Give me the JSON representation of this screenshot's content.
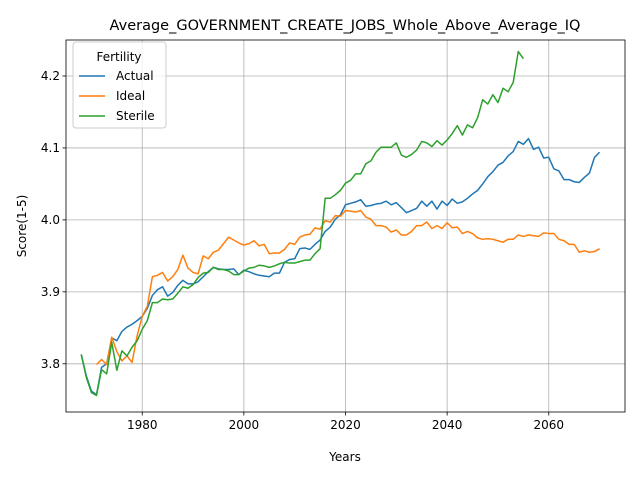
{
  "chart_data": {
    "type": "line",
    "title": "Average_GOVERNMENT_CREATE_JOBS_Whole_Above_Average_IQ",
    "xlabel": "Years",
    "ylabel": "Score(1-5)",
    "xlim": [
      1965,
      2075
    ],
    "ylim": [
      3.733,
      4.25
    ],
    "xticks": [
      1980,
      2000,
      2020,
      2040,
      2060
    ],
    "yticks": [
      3.8,
      3.9,
      4.0,
      4.1,
      4.2
    ],
    "grid": true,
    "legend": {
      "title": "Fertility",
      "placement": "top-left"
    },
    "series": [
      {
        "name": "Actual",
        "color": "#1f77b4",
        "points": [
          [
            1968,
            3.813
          ],
          [
            1969,
            3.783
          ],
          [
            1970,
            3.762
          ],
          [
            1971,
            3.757
          ],
          [
            1972,
            3.795
          ],
          [
            1973,
            3.8
          ],
          [
            1974,
            3.836
          ],
          [
            1975,
            3.832
          ],
          [
            1976,
            3.845
          ],
          [
            1977,
            3.851
          ],
          [
            1978,
            3.855
          ],
          [
            1979,
            3.86
          ],
          [
            1980,
            3.866
          ],
          [
            1981,
            3.877
          ],
          [
            1982,
            3.895
          ],
          [
            1983,
            3.903
          ],
          [
            1984,
            3.907
          ],
          [
            1985,
            3.894
          ],
          [
            1986,
            3.899
          ],
          [
            1987,
            3.909
          ],
          [
            1988,
            3.916
          ],
          [
            1989,
            3.911
          ],
          [
            1990,
            3.911
          ],
          [
            1991,
            3.914
          ],
          [
            1992,
            3.921
          ],
          [
            1993,
            3.928
          ],
          [
            1994,
            3.934
          ],
          [
            1995,
            3.932
          ],
          [
            1996,
            3.931
          ],
          [
            1997,
            3.931
          ],
          [
            1998,
            3.932
          ],
          [
            1999,
            3.924
          ],
          [
            2000,
            3.93
          ],
          [
            2001,
            3.928
          ],
          [
            2002,
            3.925
          ],
          [
            2003,
            3.923
          ],
          [
            2004,
            3.922
          ],
          [
            2005,
            3.921
          ],
          [
            2006,
            3.926
          ],
          [
            2007,
            3.926
          ],
          [
            2008,
            3.941
          ],
          [
            2009,
            3.945
          ],
          [
            2010,
            3.946
          ],
          [
            2011,
            3.96
          ],
          [
            2012,
            3.961
          ],
          [
            2013,
            3.959
          ],
          [
            2014,
            3.966
          ],
          [
            2015,
            3.972
          ],
          [
            2016,
            3.984
          ],
          [
            2017,
            3.99
          ],
          [
            2018,
            4.001
          ],
          [
            2019,
            4.007
          ],
          [
            2020,
            4.021
          ],
          [
            2021,
            4.023
          ],
          [
            2022,
            4.025
          ],
          [
            2023,
            4.028
          ],
          [
            2024,
            4.019
          ],
          [
            2025,
            4.02
          ],
          [
            2026,
            4.022
          ],
          [
            2027,
            4.023
          ],
          [
            2028,
            4.026
          ],
          [
            2029,
            4.021
          ],
          [
            2030,
            4.024
          ],
          [
            2031,
            4.017
          ],
          [
            2032,
            4.01
          ],
          [
            2033,
            4.013
          ],
          [
            2034,
            4.016
          ],
          [
            2035,
            4.026
          ],
          [
            2036,
            4.019
          ],
          [
            2037,
            4.026
          ],
          [
            2038,
            4.015
          ],
          [
            2039,
            4.026
          ],
          [
            2040,
            4.02
          ],
          [
            2041,
            4.029
          ],
          [
            2042,
            4.023
          ],
          [
            2043,
            4.025
          ],
          [
            2044,
            4.03
          ],
          [
            2045,
            4.036
          ],
          [
            2046,
            4.041
          ],
          [
            2047,
            4.05
          ],
          [
            2048,
            4.06
          ],
          [
            2049,
            4.067
          ],
          [
            2050,
            4.076
          ],
          [
            2051,
            4.08
          ],
          [
            2052,
            4.089
          ],
          [
            2053,
            4.095
          ],
          [
            2054,
            4.109
          ],
          [
            2055,
            4.105
          ],
          [
            2056,
            4.113
          ],
          [
            2057,
            4.098
          ],
          [
            2058,
            4.101
          ],
          [
            2059,
            4.086
          ],
          [
            2060,
            4.087
          ],
          [
            2061,
            4.071
          ],
          [
            2062,
            4.068
          ],
          [
            2063,
            4.056
          ],
          [
            2064,
            4.056
          ],
          [
            2065,
            4.053
          ],
          [
            2066,
            4.052
          ],
          [
            2067,
            4.059
          ],
          [
            2068,
            4.065
          ],
          [
            2069,
            4.087
          ],
          [
            2070,
            4.094
          ]
        ]
      },
      {
        "name": "Ideal",
        "color": "#ff7f0e",
        "points": [
          [
            1971,
            3.799
          ],
          [
            1972,
            3.806
          ],
          [
            1973,
            3.799
          ],
          [
            1974,
            3.837
          ],
          [
            1975,
            3.817
          ],
          [
            1976,
            3.804
          ],
          [
            1977,
            3.811
          ],
          [
            1978,
            3.802
          ],
          [
            1979,
            3.839
          ],
          [
            1980,
            3.866
          ],
          [
            1981,
            3.88
          ],
          [
            1982,
            3.921
          ],
          [
            1983,
            3.923
          ],
          [
            1984,
            3.927
          ],
          [
            1985,
            3.915
          ],
          [
            1986,
            3.921
          ],
          [
            1987,
            3.931
          ],
          [
            1988,
            3.951
          ],
          [
            1989,
            3.933
          ],
          [
            1990,
            3.927
          ],
          [
            1991,
            3.925
          ],
          [
            1992,
            3.95
          ],
          [
            1993,
            3.946
          ],
          [
            1994,
            3.955
          ],
          [
            1995,
            3.958
          ],
          [
            1996,
            3.967
          ],
          [
            1997,
            3.976
          ],
          [
            1998,
            3.972
          ],
          [
            1999,
            3.968
          ],
          [
            2000,
            3.965
          ],
          [
            2001,
            3.967
          ],
          [
            2002,
            3.971
          ],
          [
            2003,
            3.964
          ],
          [
            2004,
            3.966
          ],
          [
            2005,
            3.953
          ],
          [
            2006,
            3.954
          ],
          [
            2007,
            3.954
          ],
          [
            2008,
            3.959
          ],
          [
            2009,
            3.968
          ],
          [
            2010,
            3.966
          ],
          [
            2011,
            3.976
          ],
          [
            2012,
            3.979
          ],
          [
            2013,
            3.98
          ],
          [
            2014,
            3.989
          ],
          [
            2015,
            3.987
          ],
          [
            2016,
            3.999
          ],
          [
            2017,
            3.997
          ],
          [
            2018,
            4.006
          ],
          [
            2019,
            4.005
          ],
          [
            2020,
            4.013
          ],
          [
            2021,
            4.012
          ],
          [
            2022,
            4.011
          ],
          [
            2023,
            4.013
          ],
          [
            2024,
            4.004
          ],
          [
            2025,
            4.001
          ],
          [
            2026,
            3.992
          ],
          [
            2027,
            3.992
          ],
          [
            2028,
            3.99
          ],
          [
            2029,
            3.983
          ],
          [
            2030,
            3.986
          ],
          [
            2031,
            3.979
          ],
          [
            2032,
            3.979
          ],
          [
            2033,
            3.984
          ],
          [
            2034,
            3.992
          ],
          [
            2035,
            3.992
          ],
          [
            2036,
            3.997
          ],
          [
            2037,
            3.988
          ],
          [
            2038,
            3.992
          ],
          [
            2039,
            3.988
          ],
          [
            2040,
            3.996
          ],
          [
            2041,
            3.989
          ],
          [
            2042,
            3.99
          ],
          [
            2043,
            3.981
          ],
          [
            2044,
            3.984
          ],
          [
            2045,
            3.981
          ],
          [
            2046,
            3.975
          ],
          [
            2047,
            3.973
          ],
          [
            2048,
            3.974
          ],
          [
            2049,
            3.973
          ],
          [
            2050,
            3.971
          ],
          [
            2051,
            3.969
          ],
          [
            2052,
            3.973
          ],
          [
            2053,
            3.973
          ],
          [
            2054,
            3.979
          ],
          [
            2055,
            3.977
          ],
          [
            2056,
            3.979
          ],
          [
            2057,
            3.978
          ],
          [
            2058,
            3.977
          ],
          [
            2059,
            3.982
          ],
          [
            2060,
            3.981
          ],
          [
            2061,
            3.981
          ],
          [
            2062,
            3.973
          ],
          [
            2063,
            3.971
          ],
          [
            2064,
            3.966
          ],
          [
            2065,
            3.966
          ],
          [
            2066,
            3.955
          ],
          [
            2067,
            3.957
          ],
          [
            2068,
            3.955
          ],
          [
            2069,
            3.956
          ],
          [
            2070,
            3.96
          ]
        ]
      },
      {
        "name": "Sterile",
        "color": "#2ca02c",
        "points": [
          [
            1968,
            3.813
          ],
          [
            1969,
            3.781
          ],
          [
            1970,
            3.76
          ],
          [
            1971,
            3.756
          ],
          [
            1972,
            3.792
          ],
          [
            1973,
            3.786
          ],
          [
            1974,
            3.83
          ],
          [
            1975,
            3.791
          ],
          [
            1976,
            3.818
          ],
          [
            1977,
            3.811
          ],
          [
            1978,
            3.823
          ],
          [
            1979,
            3.832
          ],
          [
            1980,
            3.848
          ],
          [
            1981,
            3.86
          ],
          [
            1982,
            3.885
          ],
          [
            1983,
            3.885
          ],
          [
            1984,
            3.89
          ],
          [
            1985,
            3.889
          ],
          [
            1986,
            3.89
          ],
          [
            1987,
            3.898
          ],
          [
            1988,
            3.907
          ],
          [
            1989,
            3.905
          ],
          [
            1990,
            3.91
          ],
          [
            1991,
            3.92
          ],
          [
            1992,
            3.926
          ],
          [
            1993,
            3.927
          ],
          [
            1994,
            3.934
          ],
          [
            1995,
            3.931
          ],
          [
            1996,
            3.931
          ],
          [
            1997,
            3.929
          ],
          [
            1998,
            3.924
          ],
          [
            1999,
            3.924
          ],
          [
            2000,
            3.929
          ],
          [
            2001,
            3.933
          ],
          [
            2002,
            3.934
          ],
          [
            2003,
            3.937
          ],
          [
            2004,
            3.936
          ],
          [
            2005,
            3.934
          ],
          [
            2006,
            3.936
          ],
          [
            2007,
            3.939
          ],
          [
            2008,
            3.941
          ],
          [
            2009,
            3.94
          ],
          [
            2010,
            3.94
          ],
          [
            2011,
            3.942
          ],
          [
            2012,
            3.944
          ],
          [
            2013,
            3.944
          ],
          [
            2014,
            3.953
          ],
          [
            2015,
            3.96
          ],
          [
            2016,
            4.03
          ],
          [
            2017,
            4.03
          ],
          [
            2018,
            4.035
          ],
          [
            2019,
            4.041
          ],
          [
            2020,
            4.051
          ],
          [
            2021,
            4.055
          ],
          [
            2022,
            4.064
          ],
          [
            2023,
            4.064
          ],
          [
            2024,
            4.078
          ],
          [
            2025,
            4.082
          ],
          [
            2026,
            4.094
          ],
          [
            2027,
            4.101
          ],
          [
            2028,
            4.101
          ],
          [
            2029,
            4.101
          ],
          [
            2030,
            4.107
          ],
          [
            2031,
            4.09
          ],
          [
            2032,
            4.087
          ],
          [
            2033,
            4.091
          ],
          [
            2034,
            4.097
          ],
          [
            2035,
            4.109
          ],
          [
            2036,
            4.107
          ],
          [
            2037,
            4.102
          ],
          [
            2038,
            4.11
          ],
          [
            2039,
            4.104
          ],
          [
            2040,
            4.111
          ],
          [
            2041,
            4.12
          ],
          [
            2042,
            4.131
          ],
          [
            2043,
            4.118
          ],
          [
            2044,
            4.132
          ],
          [
            2045,
            4.128
          ],
          [
            2046,
            4.142
          ],
          [
            2047,
            4.167
          ],
          [
            2048,
            4.161
          ],
          [
            2049,
            4.174
          ],
          [
            2050,
            4.163
          ],
          [
            2051,
            4.183
          ],
          [
            2052,
            4.178
          ],
          [
            2053,
            4.191
          ],
          [
            2054,
            4.234
          ],
          [
            2055,
            4.224
          ]
        ]
      }
    ]
  }
}
